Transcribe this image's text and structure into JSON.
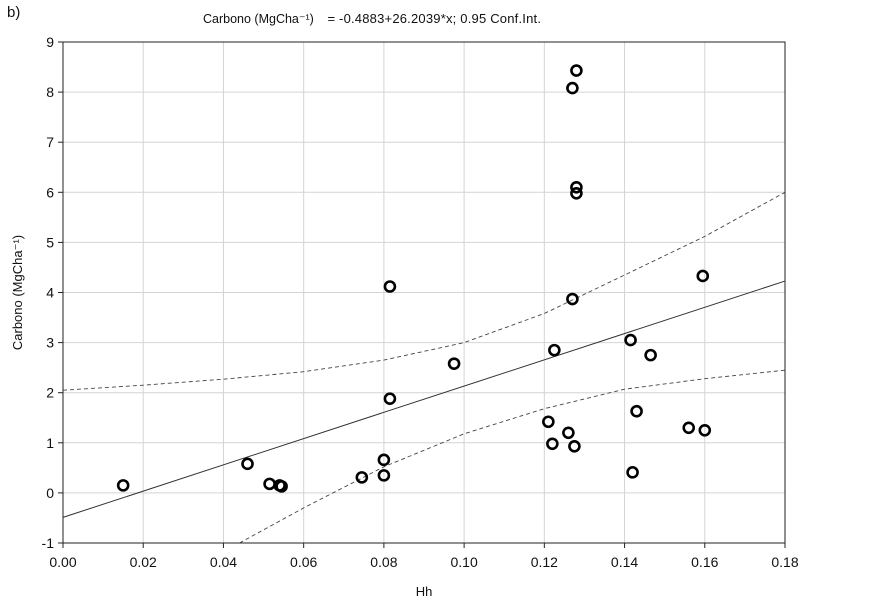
{
  "panel_label": "b)",
  "chart_data": {
    "type": "scatter",
    "title_ylabel": "Carbono (MgCha⁻¹)",
    "title_equation": "= -0.4883+26.2039*x; 0.95 Conf.Int.",
    "xlabel": "Hh",
    "ylabel": "Carbono (MgCha⁻¹)",
    "xlim": [
      0.0,
      0.18
    ],
    "ylim": [
      -1,
      9
    ],
    "x_ticks": [
      "0.00",
      "0.02",
      "0.04",
      "0.06",
      "0.08",
      "0.10",
      "0.12",
      "0.14",
      "0.16",
      "0.18"
    ],
    "y_ticks": [
      "-1",
      "0",
      "1",
      "2",
      "3",
      "4",
      "5",
      "6",
      "7",
      "8",
      "9"
    ],
    "grid": true,
    "regression": {
      "intercept": -0.4883,
      "slope": 26.2039
    },
    "confidence_band": {
      "upper": [
        [
          0.0,
          2.05
        ],
        [
          0.02,
          2.15
        ],
        [
          0.04,
          2.27
        ],
        [
          0.06,
          2.42
        ],
        [
          0.08,
          2.65
        ],
        [
          0.1,
          3.0
        ],
        [
          0.12,
          3.58
        ],
        [
          0.14,
          4.35
        ],
        [
          0.16,
          5.12
        ],
        [
          0.18,
          6.0
        ]
      ],
      "lower": [
        [
          0.044,
          -1.0
        ],
        [
          0.06,
          -0.3
        ],
        [
          0.08,
          0.52
        ],
        [
          0.1,
          1.18
        ],
        [
          0.12,
          1.68
        ],
        [
          0.14,
          2.07
        ],
        [
          0.16,
          2.28
        ],
        [
          0.18,
          2.45
        ]
      ]
    },
    "points": [
      {
        "x": 0.015,
        "y": 0.15
      },
      {
        "x": 0.046,
        "y": 0.58
      },
      {
        "x": 0.0515,
        "y": 0.18
      },
      {
        "x": 0.054,
        "y": 0.15
      },
      {
        "x": 0.0545,
        "y": 0.13
      },
      {
        "x": 0.0745,
        "y": 0.31
      },
      {
        "x": 0.08,
        "y": 0.35
      },
      {
        "x": 0.08,
        "y": 0.66
      },
      {
        "x": 0.0815,
        "y": 1.88
      },
      {
        "x": 0.0815,
        "y": 4.12
      },
      {
        "x": 0.0975,
        "y": 2.58
      },
      {
        "x": 0.121,
        "y": 1.42
      },
      {
        "x": 0.122,
        "y": 0.98
      },
      {
        "x": 0.1225,
        "y": 2.85
      },
      {
        "x": 0.126,
        "y": 1.2
      },
      {
        "x": 0.127,
        "y": 3.87
      },
      {
        "x": 0.127,
        "y": 8.08
      },
      {
        "x": 0.1275,
        "y": 0.93
      },
      {
        "x": 0.128,
        "y": 6.1
      },
      {
        "x": 0.128,
        "y": 5.98
      },
      {
        "x": 0.128,
        "y": 8.43
      },
      {
        "x": 0.1415,
        "y": 3.05
      },
      {
        "x": 0.142,
        "y": 0.41
      },
      {
        "x": 0.143,
        "y": 1.63
      },
      {
        "x": 0.1465,
        "y": 2.75
      },
      {
        "x": 0.156,
        "y": 1.3
      },
      {
        "x": 0.1595,
        "y": 4.33
      },
      {
        "x": 0.16,
        "y": 1.25
      }
    ]
  }
}
